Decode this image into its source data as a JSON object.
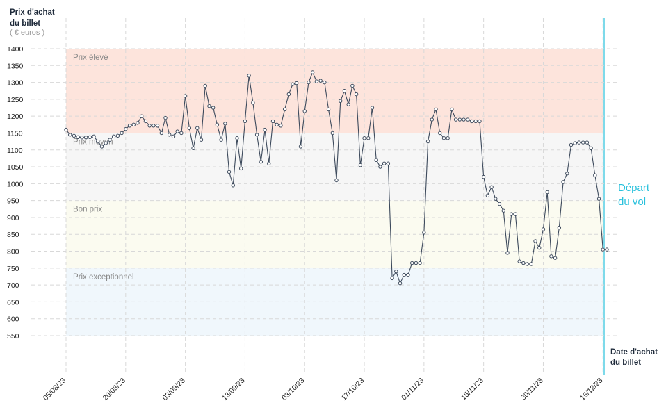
{
  "chart_data": {
    "type": "line",
    "y_label": [
      "Prix d'achat",
      "du billet"
    ],
    "y_unit": "( € euros )",
    "x_label": [
      "Date d'achat",
      "du billet"
    ],
    "annotation": [
      "Départ",
      "du vol"
    ],
    "ylim": [
      550,
      1400
    ],
    "yticks": [
      550,
      600,
      650,
      700,
      750,
      800,
      850,
      900,
      950,
      1000,
      1050,
      1100,
      1150,
      1200,
      1250,
      1300,
      1350,
      1400
    ],
    "grid": true,
    "bands": [
      {
        "name": "Prix élevé",
        "from": 1150,
        "to": 1400,
        "color": "#fde4dc"
      },
      {
        "name": "Prix moyen",
        "from": 950,
        "to": 1150,
        "color": "#f6f6f6"
      },
      {
        "name": "Bon prix",
        "from": 750,
        "to": 950,
        "color": "#fbfbf0"
      },
      {
        "name": "Prix exceptionnel",
        "from": 550,
        "to": 750,
        "color": "#f0f7fc"
      }
    ],
    "categories": [
      "05/08/23",
      null,
      null,
      null,
      null,
      null,
      null,
      null,
      null,
      null,
      null,
      null,
      null,
      null,
      null,
      "20/08/23",
      null,
      null,
      null,
      null,
      null,
      null,
      null,
      null,
      null,
      null,
      null,
      null,
      null,
      null,
      "03/09/23",
      null,
      null,
      null,
      null,
      null,
      null,
      null,
      null,
      null,
      null,
      null,
      null,
      null,
      null,
      "18/09/23",
      null,
      null,
      null,
      null,
      null,
      null,
      null,
      null,
      null,
      null,
      null,
      null,
      null,
      null,
      "03/10/23",
      null,
      null,
      null,
      null,
      null,
      null,
      null,
      null,
      null,
      null,
      null,
      null,
      null,
      null,
      "17/10/23",
      null,
      null,
      null,
      null,
      null,
      null,
      null,
      null,
      null,
      null,
      null,
      null,
      null,
      null,
      "01/11/23",
      null,
      null,
      null,
      null,
      null,
      null,
      null,
      null,
      null,
      null,
      null,
      null,
      null,
      null,
      "15/11/23",
      null,
      null,
      null,
      null,
      null,
      null,
      null,
      null,
      null,
      null,
      null,
      null,
      null,
      null,
      "30/11/23",
      null,
      null,
      null,
      null,
      null,
      null,
      null,
      null,
      null,
      null,
      null,
      null,
      null,
      null,
      "15/12/23",
      null
    ],
    "series": [
      {
        "color": "#3d4a5c",
        "values": [
          1160,
          1145,
          1142,
          1138,
          1137,
          1137,
          1138,
          1140,
          1125,
          1110,
          1120,
          1130,
          1140,
          1142,
          1150,
          1162,
          1172,
          1175,
          1180,
          1200,
          1185,
          1172,
          1172,
          1172,
          1150,
          1195,
          1145,
          1140,
          1155,
          1150,
          1260,
          1165,
          1105,
          1165,
          1130,
          1290,
          1230,
          1225,
          1175,
          1130,
          1178,
          1035,
          995,
          1135,
          1045,
          1185,
          1320,
          1240,
          1145,
          1065,
          1160,
          1060,
          1185,
          1175,
          1172,
          1220,
          1265,
          1295,
          1298,
          1110,
          1215,
          1300,
          1330,
          1303,
          1305,
          1300,
          1220,
          1150,
          1010,
          1245,
          1275,
          1235,
          1290,
          1265,
          1055,
          1135,
          1135,
          1225,
          1070,
          1050,
          1060,
          1060,
          720,
          740,
          705,
          730,
          730,
          765,
          765,
          765,
          855,
          1125,
          1190,
          1220,
          1150,
          1135,
          1135,
          1220,
          1190,
          1190,
          1190,
          1190,
          1185,
          1185,
          1185,
          1020,
          965,
          990,
          955,
          940,
          920,
          795,
          910,
          910,
          770,
          765,
          762,
          762,
          830,
          810,
          865,
          975,
          785,
          780,
          870,
          1005,
          1030,
          1115,
          1120,
          1122,
          1122,
          1122,
          1105,
          1025,
          955,
          805,
          805
        ]
      }
    ]
  }
}
